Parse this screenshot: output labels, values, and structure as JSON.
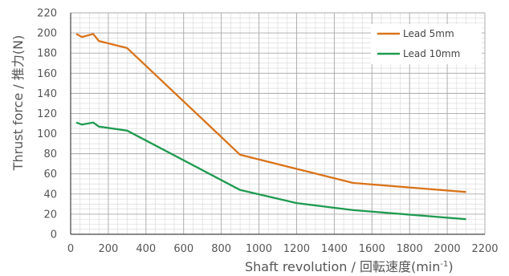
{
  "chart_data": {
    "type": "line",
    "xlabel": "Shaft revolution / 回転速度",
    "xlabel_unit_base": "(min",
    "xlabel_unit_sup": "-1",
    "xlabel_unit_close": ")",
    "ylabel": "Thrust force / 推力(N)",
    "xlim": [
      0,
      2200
    ],
    "ylim": [
      0,
      220
    ],
    "x_ticks": [
      0,
      200,
      400,
      600,
      800,
      1000,
      1200,
      1400,
      1600,
      1800,
      2000,
      2200
    ],
    "y_ticks": [
      0,
      20,
      40,
      60,
      80,
      100,
      120,
      140,
      160,
      180,
      200,
      220
    ],
    "grid": true,
    "legend_position": "top-right",
    "series": [
      {
        "name": "Lead 5mm",
        "color": "#d9731a",
        "points": [
          [
            30,
            199
          ],
          [
            60,
            196
          ],
          [
            120,
            199
          ],
          [
            150,
            192
          ],
          [
            300,
            185
          ],
          [
            900,
            79
          ],
          [
            1200,
            65
          ],
          [
            1500,
            51
          ],
          [
            2100,
            42
          ]
        ]
      },
      {
        "name": "Lead 10mm",
        "color": "#1f9a50",
        "points": [
          [
            30,
            111
          ],
          [
            60,
            109
          ],
          [
            120,
            111
          ],
          [
            150,
            107
          ],
          [
            300,
            103
          ],
          [
            900,
            44
          ],
          [
            1200,
            31
          ],
          [
            1500,
            24
          ],
          [
            2100,
            15
          ]
        ]
      }
    ]
  }
}
